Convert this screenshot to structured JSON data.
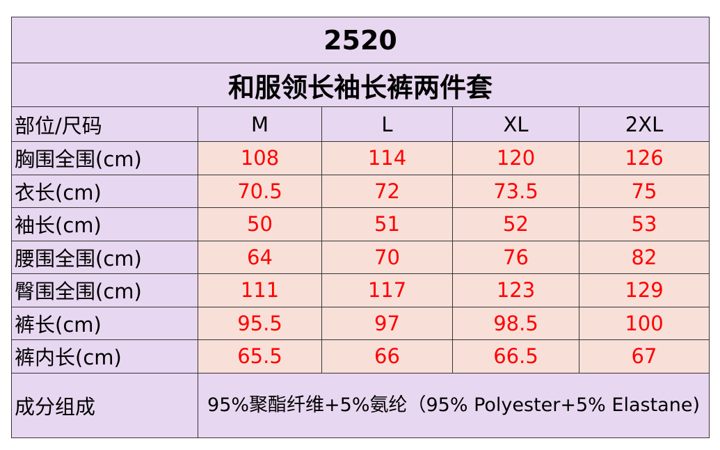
{
  "title": "2520",
  "subtitle": "和服领长袖长裤两件套",
  "table": {
    "header": [
      "部位/尺码",
      "M",
      "L",
      "XL",
      "2XL"
    ],
    "rows": [
      [
        "胸围全围(cm)",
        108,
        114,
        120,
        126
      ],
      [
        "衣长(cm)",
        70.5,
        72,
        73.5,
        75
      ],
      [
        "袖长(cm)",
        50,
        51,
        52,
        53
      ],
      [
        "腰围全围(cm)",
        64,
        70,
        76,
        82
      ],
      [
        "臀围全围(cm)",
        111,
        117,
        123,
        129
      ],
      [
        "裤长(cm)",
        95.5,
        97,
        98.5,
        100
      ],
      [
        "裤内长(cm)",
        65.5,
        66,
        66.5,
        67
      ]
    ]
  },
  "composition": {
    "label": "成分组成",
    "text": "95%聚酯纤维+5%氨纶（95% Polyester+5% Elastane)"
  }
}
